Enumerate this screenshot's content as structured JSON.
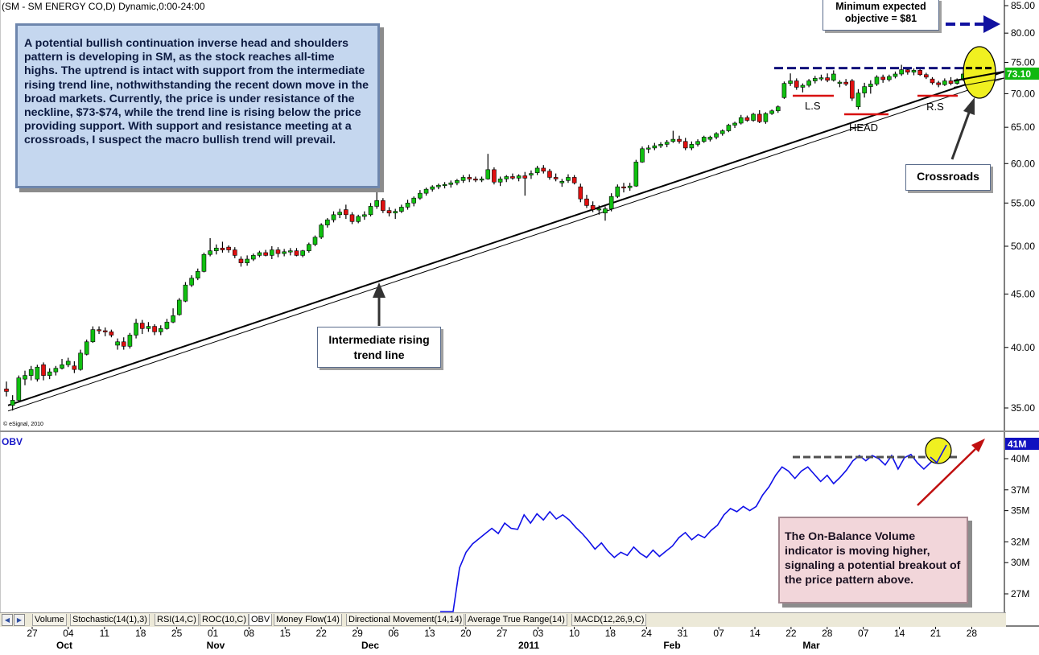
{
  "title": "(SM - SM ENERGY CO,D) Dynamic,0:00-24:00",
  "watermark": "© eSignal, 2010",
  "description": "A potential bullish continuation inverse head and shoulders pattern is developing in SM, as the stock reaches all-time highs. The uptrend is intact with support from the intermediate rising trend line, nothwithstanding the recent down move in the broad markets. Currently, the price is under resistance of the neckline, $73-$74, while the trend line is rising below the price providing support. With support and resistance meeting at a crossroads, I suspect the macro bullish trend will prevail.",
  "trend_callout": "Intermediate rising trend line",
  "objective_callout": "Minimum expected objective = $81",
  "crossroads_callout": "Crossroads",
  "obv_label": "OBV",
  "obv_callout": "The On-Balance Volume indicator is moving higher, signaling a potential breakout of the price pattern above.",
  "tabs": [
    "Volume",
    "Stochastic(14(1),3)",
    "RSI(14,C)",
    "ROC(10,C)",
    "OBV",
    "Money Flow(14)",
    "Directional Movement(14,14)",
    "Average True Range(14)",
    "MACD(12,26,9,C)"
  ],
  "active_tab": "OBV",
  "colors": {
    "up": "#10c010",
    "down": "#e01010",
    "neckline": "#10107a",
    "obv_line": "#1010e8",
    "pattern_line": "#d81010",
    "highlight": "#f0f020",
    "accent_arrow": "#1010a0",
    "obv_arrow": "#c01010",
    "price_badge": "#10b810"
  },
  "chart_data": [
    {
      "type": "candlestick",
      "title": "(SM - SM ENERGY CO,D) Dynamic,0:00-24:00",
      "y_axis": {
        "min": 34,
        "max": 85,
        "scale": "log",
        "ticks": [
          "35.00",
          "40.00",
          "45.00",
          "50.00",
          "55.00",
          "60.00",
          "65.00",
          "70.00",
          "75.00",
          "80.00",
          "85.00"
        ]
      },
      "last_price": "73.10",
      "x_axis": {
        "day_labels": [
          "27",
          "04",
          "11",
          "18",
          "25",
          "01",
          "08",
          "15",
          "22",
          "29",
          "06",
          "13",
          "20",
          "27",
          "03",
          "10",
          "18",
          "24",
          "31",
          "07",
          "14",
          "22",
          "28",
          "07",
          "14",
          "21",
          "28"
        ],
        "month_labels": [
          "Oct",
          "Nov",
          "Dec",
          "2011",
          "Feb",
          "Mar"
        ]
      },
      "ohlc": [
        [
          36.5,
          37.1,
          35.9,
          36.3
        ],
        [
          35.2,
          36.0,
          34.8,
          35.6
        ],
        [
          35.6,
          37.6,
          35.5,
          37.4
        ],
        [
          37.3,
          38.0,
          36.8,
          37.6
        ],
        [
          37.6,
          38.4,
          37.2,
          38.1
        ],
        [
          37.3,
          38.5,
          37.1,
          38.3
        ],
        [
          38.5,
          38.7,
          37.2,
          37.6
        ],
        [
          37.6,
          38.2,
          37.3,
          37.9
        ],
        [
          37.9,
          38.4,
          37.6,
          38.2
        ],
        [
          38.2,
          39.0,
          38.1,
          38.5
        ],
        [
          38.5,
          39.1,
          38.3,
          38.8
        ],
        [
          38.4,
          38.8,
          37.8,
          38.1
        ],
        [
          38.1,
          39.8,
          38.0,
          39.5
        ],
        [
          39.4,
          40.7,
          39.3,
          40.5
        ],
        [
          40.5,
          41.9,
          40.4,
          41.6
        ],
        [
          41.6,
          41.9,
          41.2,
          41.5
        ],
        [
          41.5,
          41.8,
          41.0,
          41.4
        ],
        [
          41.4,
          41.6,
          40.9,
          41.1
        ],
        [
          40.2,
          40.8,
          39.8,
          40.5
        ],
        [
          40.5,
          40.9,
          39.8,
          40.1
        ],
        [
          40.1,
          41.3,
          39.9,
          41.1
        ],
        [
          41.1,
          42.6,
          40.8,
          42.2
        ],
        [
          42.2,
          42.5,
          41.2,
          41.7
        ],
        [
          41.7,
          42.3,
          41.4,
          41.9
        ],
        [
          41.9,
          42.1,
          41.1,
          41.4
        ],
        [
          41.4,
          42.0,
          41.1,
          41.7
        ],
        [
          41.7,
          42.6,
          41.6,
          42.3
        ],
        [
          42.3,
          43.6,
          42.2,
          42.9
        ],
        [
          43.0,
          44.6,
          42.9,
          44.4
        ],
        [
          44.3,
          46.2,
          44.2,
          45.9
        ],
        [
          45.9,
          46.9,
          45.7,
          46.6
        ],
        [
          46.6,
          47.6,
          46.4,
          47.3
        ],
        [
          47.3,
          49.3,
          47.2,
          49.1
        ],
        [
          49.1,
          50.9,
          48.9,
          49.5
        ],
        [
          49.5,
          50.2,
          49.1,
          49.8
        ],
        [
          49.8,
          50.5,
          49.3,
          49.6
        ],
        [
          49.9,
          50.1,
          49.3,
          49.6
        ],
        [
          49.6,
          49.9,
          48.7,
          49.0
        ],
        [
          48.6,
          48.9,
          47.8,
          48.2
        ],
        [
          48.2,
          49.0,
          47.9,
          48.6
        ],
        [
          48.6,
          49.2,
          48.4,
          49.0
        ],
        [
          49.0,
          49.5,
          48.8,
          49.3
        ],
        [
          49.3,
          49.6,
          48.9,
          49.0
        ],
        [
          49.0,
          50.0,
          48.6,
          49.6
        ],
        [
          49.6,
          49.9,
          48.8,
          49.2
        ],
        [
          49.2,
          49.7,
          48.9,
          49.4
        ],
        [
          49.4,
          49.8,
          49.0,
          49.5
        ],
        [
          49.5,
          49.8,
          48.9,
          49.0
        ],
        [
          49.0,
          49.6,
          48.8,
          49.5
        ],
        [
          49.5,
          50.4,
          49.3,
          50.2
        ],
        [
          50.2,
          51.2,
          50.0,
          51.0
        ],
        [
          51.0,
          52.6,
          50.8,
          52.4
        ],
        [
          52.4,
          53.2,
          52.1,
          53.0
        ],
        [
          53.0,
          54.0,
          52.7,
          53.6
        ],
        [
          53.6,
          54.3,
          53.2,
          53.9
        ],
        [
          54.2,
          54.8,
          53.1,
          53.6
        ],
        [
          53.6,
          53.9,
          52.5,
          52.8
        ],
        [
          52.8,
          53.6,
          52.6,
          53.4
        ],
        [
          53.4,
          54.0,
          53.0,
          53.6
        ],
        [
          53.6,
          55.0,
          53.4,
          54.6
        ],
        [
          54.6,
          56.6,
          54.3,
          55.3
        ],
        [
          55.3,
          55.6,
          53.8,
          54.1
        ],
        [
          54.1,
          54.5,
          53.4,
          53.8
        ],
        [
          53.8,
          54.3,
          53.1,
          54.0
        ],
        [
          54.0,
          54.8,
          53.8,
          54.5
        ],
        [
          54.5,
          55.4,
          54.2,
          55.0
        ],
        [
          55.0,
          55.8,
          54.6,
          55.6
        ],
        [
          55.6,
          56.6,
          55.4,
          56.2
        ],
        [
          56.2,
          56.9,
          55.9,
          56.7
        ],
        [
          56.7,
          57.2,
          56.4,
          57.0
        ],
        [
          57.0,
          57.4,
          56.7,
          57.2
        ],
        [
          57.2,
          57.6,
          56.8,
          57.3
        ],
        [
          57.3,
          57.8,
          56.9,
          57.5
        ],
        [
          57.5,
          58.0,
          57.2,
          57.8
        ],
        [
          57.8,
          58.5,
          57.5,
          58.2
        ],
        [
          58.2,
          58.6,
          57.6,
          58.0
        ],
        [
          58.0,
          58.3,
          57.6,
          57.9
        ],
        [
          57.9,
          58.3,
          57.6,
          58.0
        ],
        [
          58.0,
          61.3,
          57.9,
          59.2
        ],
        [
          59.2,
          59.5,
          57.3,
          57.6
        ],
        [
          57.6,
          58.3,
          57.1,
          58.0
        ],
        [
          58.0,
          58.5,
          57.6,
          58.3
        ],
        [
          58.3,
          58.7,
          57.9,
          58.1
        ],
        [
          58.1,
          58.6,
          57.7,
          58.4
        ],
        [
          58.4,
          58.9,
          55.9,
          58.1
        ],
        [
          58.5,
          59.1,
          58.0,
          58.7
        ],
        [
          58.8,
          59.7,
          58.5,
          59.4
        ],
        [
          59.4,
          59.8,
          58.7,
          59.0
        ],
        [
          59.0,
          59.3,
          57.9,
          58.2
        ],
        [
          58.2,
          58.7,
          57.7,
          58.0
        ],
        [
          57.5,
          58.0,
          57.0,
          57.7
        ],
        [
          57.8,
          58.6,
          57.5,
          58.2
        ],
        [
          58.2,
          58.5,
          57.3,
          57.5
        ],
        [
          57.0,
          57.4,
          55.1,
          55.5
        ],
        [
          55.5,
          56.0,
          54.4,
          54.7
        ],
        [
          54.7,
          55.2,
          53.9,
          54.2
        ],
        [
          54.2,
          54.7,
          53.6,
          54.3
        ],
        [
          53.8,
          54.6,
          52.9,
          54.3
        ],
        [
          54.3,
          56.2,
          54.0,
          55.8
        ],
        [
          55.8,
          57.3,
          55.6,
          57.0
        ],
        [
          57.0,
          57.5,
          56.3,
          56.9
        ],
        [
          56.9,
          57.5,
          56.5,
          57.1
        ],
        [
          57.1,
          60.5,
          57.0,
          60.2
        ],
        [
          60.2,
          62.3,
          60.1,
          62.0
        ],
        [
          62.0,
          62.5,
          61.4,
          62.1
        ],
        [
          62.1,
          62.8,
          61.8,
          62.4
        ],
        [
          62.4,
          62.9,
          62.1,
          62.6
        ],
        [
          62.6,
          63.2,
          62.2,
          62.9
        ],
        [
          63.0,
          64.5,
          62.8,
          63.3
        ],
        [
          63.3,
          63.8,
          62.7,
          63.0
        ],
        [
          63.0,
          63.5,
          61.8,
          62.1
        ],
        [
          62.1,
          63.0,
          61.8,
          62.6
        ],
        [
          62.6,
          63.3,
          62.3,
          63.0
        ],
        [
          63.0,
          63.8,
          62.8,
          63.6
        ],
        [
          63.3,
          63.8,
          63.0,
          63.6
        ],
        [
          63.6,
          64.3,
          63.3,
          64.1
        ],
        [
          64.1,
          64.7,
          63.8,
          64.5
        ],
        [
          64.5,
          65.5,
          64.3,
          65.3
        ],
        [
          65.3,
          65.8,
          64.9,
          65.6
        ],
        [
          65.6,
          66.8,
          65.4,
          66.4
        ],
        [
          66.4,
          66.7,
          65.8,
          66.0
        ],
        [
          66.0,
          67.1,
          65.8,
          66.9
        ],
        [
          66.9,
          67.5,
          65.6,
          65.8
        ],
        [
          65.8,
          67.2,
          65.5,
          67.0
        ],
        [
          67.0,
          67.6,
          66.8,
          67.4
        ],
        [
          67.4,
          68.2,
          67.1,
          68.0
        ],
        [
          69.4,
          71.9,
          69.2,
          71.6
        ],
        [
          71.6,
          73.2,
          71.2,
          72.0
        ],
        [
          72.0,
          72.4,
          70.6,
          71.0
        ],
        [
          71.0,
          71.6,
          70.2,
          71.3
        ],
        [
          71.3,
          72.3,
          71.0,
          72.0
        ],
        [
          72.0,
          72.8,
          71.6,
          72.4
        ],
        [
          72.4,
          73.0,
          72.0,
          72.5
        ],
        [
          72.5,
          73.2,
          71.8,
          72.1
        ],
        [
          72.1,
          73.7,
          71.9,
          73.1
        ],
        [
          71.6,
          72.1,
          71.0,
          71.8
        ],
        [
          71.8,
          72.3,
          71.2,
          71.5
        ],
        [
          72.0,
          72.3,
          68.9,
          69.3
        ],
        [
          68.0,
          70.7,
          67.6,
          70.1
        ],
        [
          70.1,
          71.7,
          69.4,
          71.1
        ],
        [
          71.1,
          72.1,
          70.0,
          71.5
        ],
        [
          71.5,
          72.9,
          71.2,
          72.6
        ],
        [
          72.6,
          73.0,
          71.7,
          72.2
        ],
        [
          72.2,
          73.0,
          71.9,
          72.7
        ],
        [
          72.7,
          73.5,
          72.4,
          73.1
        ],
        [
          73.1,
          74.6,
          72.8,
          73.8
        ],
        [
          73.8,
          74.2,
          73.0,
          73.4
        ],
        [
          73.4,
          74.0,
          72.9,
          73.7
        ],
        [
          73.7,
          74.1,
          72.8,
          73.0
        ],
        [
          73.0,
          73.3,
          72.3,
          72.6
        ],
        [
          72.3,
          72.6,
          71.4,
          71.7
        ],
        [
          71.7,
          72.0,
          71.0,
          71.4
        ],
        [
          71.4,
          72.4,
          71.2,
          72.0
        ],
        [
          72.0,
          72.6,
          71.3,
          71.6
        ],
        [
          71.6,
          72.4,
          71.4,
          72.2
        ],
        [
          72.2,
          73.3,
          72.0,
          73.1
        ]
      ],
      "trend_line": {
        "start": 35.2,
        "end": 73.5
      },
      "resistance_neckline": [
        73.2,
        74.0
      ],
      "objective_target": 81,
      "pattern_labels": [
        "L.S",
        "HEAD",
        "R.S"
      ]
    },
    {
      "type": "line",
      "title": "OBV",
      "y_axis": {
        "ticks": [
          "27M",
          "30M",
          "32M",
          "35M",
          "37M",
          "40M"
        ],
        "last_value": "41M"
      },
      "series": [
        {
          "values": [
            10,
            14,
            25,
            29.5,
            31,
            31.8,
            32.3,
            32.8,
            33.3,
            32.8,
            33.8,
            33.3,
            33.2,
            34.6,
            33.8,
            34.7,
            34.1,
            34.9,
            34.2,
            34.6,
            34.1,
            33.4,
            32.8,
            32.1,
            31.3,
            31.9,
            31.1,
            30.5,
            31.0,
            30.7,
            31.5,
            30.9,
            30.5,
            31.2,
            30.6,
            31.1,
            31.6,
            32.4,
            32.9,
            32.2,
            32.7,
            32.4,
            33.1,
            33.6,
            34.6,
            35.2,
            34.9,
            35.4,
            35.0,
            35.4,
            36.5,
            37.3,
            38.4,
            39.2,
            38.8,
            38.1,
            38.8,
            39.2,
            38.5,
            37.8,
            38.4,
            37.6,
            38.2,
            38.9,
            39.8,
            40.3,
            39.8,
            40.3,
            40.0,
            39.4,
            40.3,
            39.0,
            40.1,
            40.4,
            39.6,
            39.0,
            39.6,
            40.2,
            41.0,
            41.3
          ]
        }
      ]
    }
  ]
}
